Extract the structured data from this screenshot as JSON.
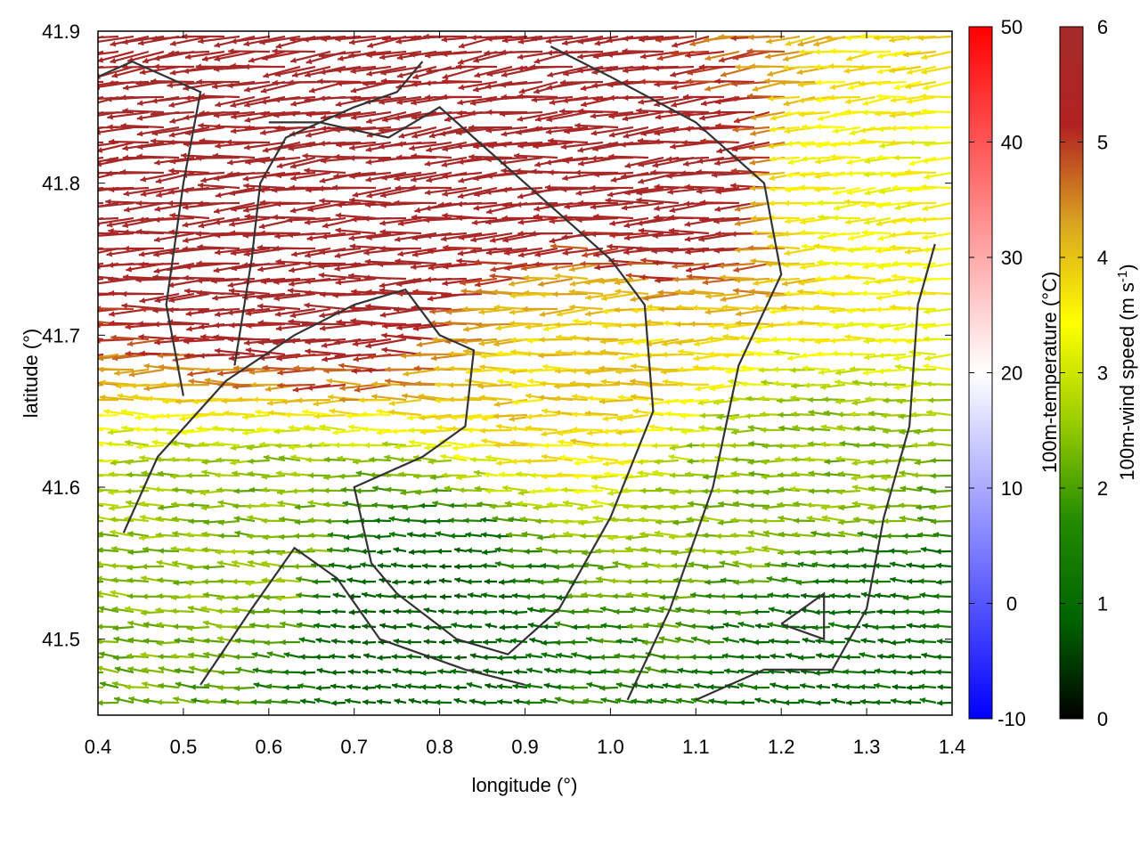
{
  "chart_data": {
    "type": "vector-field",
    "xlabel": "longitude (°)",
    "ylabel": "latitude (°)",
    "xlim": [
      0.4,
      1.4
    ],
    "ylim": [
      41.45,
      41.9
    ],
    "xticks": [
      "0.4",
      "0.5",
      "0.6",
      "0.7",
      "0.8",
      "0.9",
      "1.0",
      "1.1",
      "1.2",
      "1.3",
      "1.4"
    ],
    "yticks": [
      "41.5",
      "41.6",
      "41.7",
      "41.8",
      "41.9"
    ],
    "grid": false,
    "colorbars": [
      {
        "label": "100m-temperature (°C)",
        "range": [
          -10,
          50
        ],
        "ticks": [
          "-10",
          "0",
          "10",
          "20",
          "30",
          "40",
          "50"
        ],
        "colors": [
          "#0000ff",
          "#ffffff",
          "#ff0000"
        ]
      },
      {
        "label": "100m-wind speed (m s",
        "label_sup": "-1",
        "label_end": ")",
        "range": [
          0,
          6
        ],
        "ticks": [
          "0",
          "1",
          "2",
          "3",
          "4",
          "5",
          "6"
        ],
        "colors": [
          "#000000",
          "#006400",
          "#228b00",
          "#9acd00",
          "#ffff00",
          "#daa520",
          "#b22222",
          "#a52a2a"
        ]
      }
    ],
    "field_description": "Wind arrows (mostly westward) coloured by 100m wind speed; strongest (dark red) in the north-west, weakest (dark green) in the south.",
    "wind_samples": [
      {
        "lon": 0.45,
        "lat": 41.85,
        "speed": 6.0
      },
      {
        "lon": 0.55,
        "lat": 41.8,
        "speed": 6.0
      },
      {
        "lon": 0.7,
        "lat": 41.75,
        "speed": 6.0
      },
      {
        "lon": 0.9,
        "lat": 41.82,
        "speed": 6.0
      },
      {
        "lon": 1.1,
        "lat": 41.8,
        "speed": 6.0
      },
      {
        "lon": 1.3,
        "lat": 41.8,
        "speed": 4.0
      },
      {
        "lon": 1.0,
        "lat": 41.68,
        "speed": 4.5
      },
      {
        "lon": 0.6,
        "lat": 41.55,
        "speed": 3.0
      },
      {
        "lon": 0.75,
        "lat": 41.52,
        "speed": 1.5
      },
      {
        "lon": 1.3,
        "lat": 41.5,
        "speed": 1.8
      },
      {
        "lon": 1.2,
        "lat": 41.6,
        "speed": 3.0
      }
    ],
    "boundaries": [
      [
        [
          0.43,
          41.57
        ],
        [
          0.47,
          41.62
        ],
        [
          0.55,
          41.67
        ],
        [
          0.63,
          41.7
        ],
        [
          0.7,
          41.72
        ],
        [
          0.76,
          41.73
        ],
        [
          0.8,
          41.7
        ],
        [
          0.84,
          41.69
        ],
        [
          0.83,
          41.64
        ],
        [
          0.78,
          41.62
        ],
        [
          0.7,
          41.6
        ],
        [
          0.72,
          41.55
        ],
        [
          0.75,
          41.53
        ],
        [
          0.82,
          41.5
        ],
        [
          0.88,
          41.49
        ],
        [
          0.94,
          41.52
        ],
        [
          1.0,
          41.58
        ],
        [
          1.05,
          41.65
        ],
        [
          1.04,
          41.72
        ],
        [
          1.0,
          41.75
        ],
        [
          0.92,
          41.79
        ],
        [
          0.86,
          41.82
        ],
        [
          0.8,
          41.85
        ],
        [
          0.74,
          41.83
        ],
        [
          0.66,
          41.84
        ],
        [
          0.6,
          41.84
        ]
      ],
      [
        [
          0.5,
          41.66
        ],
        [
          0.48,
          41.72
        ],
        [
          0.5,
          41.8
        ],
        [
          0.52,
          41.86
        ],
        [
          0.44,
          41.88
        ],
        [
          0.4,
          41.87
        ]
      ],
      [
        [
          0.56,
          41.68
        ],
        [
          0.58,
          41.75
        ],
        [
          0.59,
          41.8
        ],
        [
          0.62,
          41.83
        ],
        [
          0.7,
          41.85
        ],
        [
          0.75,
          41.86
        ],
        [
          0.78,
          41.88
        ]
      ],
      [
        [
          1.02,
          41.46
        ],
        [
          1.07,
          41.52
        ],
        [
          1.12,
          41.6
        ],
        [
          1.15,
          41.68
        ],
        [
          1.2,
          41.74
        ],
        [
          1.18,
          41.8
        ],
        [
          1.1,
          41.84
        ],
        [
          1.0,
          41.87
        ],
        [
          0.93,
          41.89
        ]
      ],
      [
        [
          0.52,
          41.47
        ],
        [
          0.58,
          41.52
        ],
        [
          0.63,
          41.56
        ],
        [
          0.68,
          41.54
        ],
        [
          0.73,
          41.5
        ],
        [
          0.78,
          41.49
        ],
        [
          0.83,
          41.48
        ],
        [
          0.9,
          41.47
        ]
      ],
      [
        [
          1.1,
          41.46
        ],
        [
          1.18,
          41.48
        ],
        [
          1.26,
          41.48
        ],
        [
          1.3,
          41.52
        ],
        [
          1.32,
          41.58
        ],
        [
          1.35,
          41.64
        ],
        [
          1.36,
          41.72
        ],
        [
          1.38,
          41.76
        ]
      ],
      [
        [
          1.2,
          41.51
        ],
        [
          1.25,
          41.5
        ],
        [
          1.25,
          41.53
        ],
        [
          1.2,
          41.51
        ]
      ]
    ]
  }
}
